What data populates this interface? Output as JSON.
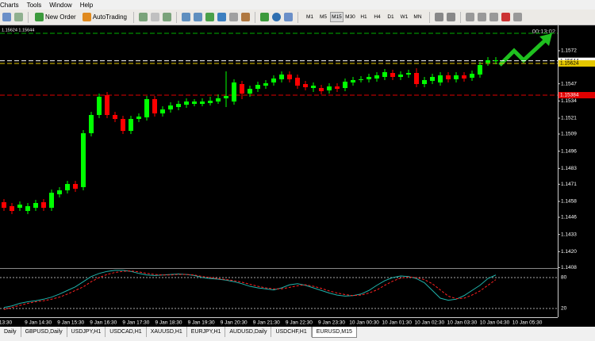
{
  "menu": [
    "Charts",
    "Tools",
    "Window",
    "Help"
  ],
  "toolbar": {
    "buttons": [
      "New Order",
      "AutoTrading"
    ],
    "timeframes": [
      "M1",
      "M5",
      "M15",
      "M30",
      "H1",
      "H4",
      "D1",
      "W1",
      "MN"
    ],
    "active_timeframe": 2
  },
  "chart_data": [
    {
      "type": "candlestick",
      "subtitle": "1.15624 1.15644",
      "annotation": "00:13:02",
      "up_color": "#00ff00",
      "down_color": "#ff0000",
      "open": [
        1.14574,
        1.14544,
        1.14532,
        1.14508,
        1.14532,
        1.14574,
        1.14532,
        1.14634,
        1.14664,
        1.14712,
        1.14688,
        1.15096,
        1.15234,
        1.15384,
        1.15234,
        1.15204,
        1.15114,
        1.15204,
        1.15216,
        1.15354,
        1.15246,
        1.15276,
        1.15294,
        1.15312,
        1.15318,
        1.15318,
        1.15324,
        1.15336,
        1.1536,
        1.15336,
        1.15468,
        1.15396,
        1.15432,
        1.15456,
        1.1548,
        1.15504,
        1.1554,
        1.15516,
        1.15468,
        1.15438,
        1.15438,
        1.1542,
        1.1545,
        1.15438,
        1.1548,
        1.15498,
        1.15504,
        1.1551,
        1.15522,
        1.15552,
        1.15522,
        1.1554,
        1.15552,
        1.15468,
        1.15492,
        1.1548,
        1.15534,
        1.15504,
        1.15534,
        1.15516,
        1.1554,
        1.1563,
        1.15642
      ],
      "high": [
        1.14598,
        1.14568,
        1.1458,
        1.14568,
        1.14592,
        1.14598,
        1.1467,
        1.14688,
        1.14736,
        1.14736,
        1.1512,
        1.15258,
        1.15396,
        1.15408,
        1.15258,
        1.15228,
        1.15228,
        1.15246,
        1.15378,
        1.15378,
        1.153,
        1.1533,
        1.15342,
        1.1536,
        1.15354,
        1.1536,
        1.15372,
        1.1539,
        1.15564,
        1.15504,
        1.15492,
        1.15456,
        1.15486,
        1.15498,
        1.15534,
        1.15564,
        1.15564,
        1.1554,
        1.15492,
        1.1548,
        1.15462,
        1.15474,
        1.15474,
        1.1551,
        1.15522,
        1.15528,
        1.15546,
        1.15558,
        1.15582,
        1.15576,
        1.15564,
        1.15576,
        1.15588,
        1.15522,
        1.15546,
        1.15558,
        1.15558,
        1.15558,
        1.15558,
        1.1557,
        1.15636,
        1.15672,
        1.15672
      ],
      "low": [
        1.14508,
        1.14484,
        1.14508,
        1.14484,
        1.14508,
        1.14508,
        1.14508,
        1.1461,
        1.1464,
        1.14652,
        1.14664,
        1.15072,
        1.1521,
        1.1521,
        1.1518,
        1.1509,
        1.1509,
        1.1518,
        1.15192,
        1.15222,
        1.15222,
        1.15252,
        1.1527,
        1.15288,
        1.153,
        1.153,
        1.15306,
        1.15318,
        1.15294,
        1.15312,
        1.15354,
        1.15372,
        1.15408,
        1.15432,
        1.15456,
        1.1548,
        1.1548,
        1.15432,
        1.1542,
        1.15408,
        1.1539,
        1.15396,
        1.15408,
        1.15414,
        1.15456,
        1.1548,
        1.1548,
        1.15486,
        1.15498,
        1.15498,
        1.15498,
        1.15516,
        1.15444,
        1.15444,
        1.15468,
        1.15456,
        1.1548,
        1.1548,
        1.15486,
        1.15492,
        1.15516,
        1.15606,
        1.15618
      ],
      "close": [
        1.14532,
        1.14508,
        1.14556,
        1.14544,
        1.14568,
        1.14532,
        1.14646,
        1.14664,
        1.14712,
        1.14676,
        1.15096,
        1.15234,
        1.15372,
        1.15234,
        1.15204,
        1.15114,
        1.15204,
        1.15222,
        1.15354,
        1.15246,
        1.15276,
        1.15306,
        1.15318,
        1.15336,
        1.15336,
        1.15336,
        1.15342,
        1.1536,
        1.15378,
        1.1548,
        1.15396,
        1.15432,
        1.15462,
        1.15474,
        1.1551,
        1.1554,
        1.15504,
        1.15456,
        1.15444,
        1.15456,
        1.15414,
        1.1545,
        1.15432,
        1.15486,
        1.15498,
        1.15504,
        1.15522,
        1.15534,
        1.15558,
        1.15522,
        1.1554,
        1.15552,
        1.15468,
        1.15498,
        1.15522,
        1.15534,
        1.15504,
        1.15534,
        1.1551,
        1.15546,
        1.15612,
        1.15648,
        1.15648
      ],
      "ylim": [
        1.14082,
        1.15906
      ],
      "yticks": [
        1.1572,
        1.1547,
        1.1534,
        1.1521,
        1.1509,
        1.1496,
        1.1483,
        1.1471,
        1.1458,
        1.1446,
        1.1433,
        {
          "value": 1.142,
          "label": "1.1420"
        },
        1.1408
      ],
      "levels": [
        {
          "value": 1.15852,
          "color": "#00b000"
        },
        {
          "value": 1.15644,
          "color": "#ffffff",
          "label": "1.15644"
        },
        {
          "value": 1.15624,
          "color": "#e6c800",
          "label": "1.15624"
        },
        {
          "value": 1.15384,
          "color": "#e00000",
          "label": "1.15384"
        }
      ],
      "x_labels": [
        "13:30",
        "9 Jan 14:30",
        "9 Jan 15:30",
        "9 Jan 16:30",
        "9 Jan 17:30",
        "9 Jan 18:30",
        "9 Jan 19:30",
        "9 Jan 20:30",
        "9 Jan 21:30",
        "9 Jan 22:30",
        "9 Jan 23:30",
        "10 Jan 00:30",
        "10 Jan 01:30",
        "10 Jan 02:30",
        "10 Jan 03:30",
        "10 Jan 04:30",
        "10 Jan 05:30"
      ]
    },
    {
      "type": "line",
      "ylim": [
        0,
        100
      ],
      "yticks": [
        20,
        80
      ],
      "series": [
        {
          "color": "#20b2aa",
          "dashed": false,
          "values": [
            22,
            25,
            30,
            33,
            35,
            38,
            42,
            48,
            55,
            62,
            72,
            82,
            88,
            92,
            94,
            94,
            92,
            88,
            85,
            84,
            85,
            86,
            87,
            86,
            84,
            80,
            78,
            77,
            75,
            72,
            68,
            63,
            60,
            58,
            56,
            60,
            66,
            68,
            65,
            60,
            55,
            50,
            46,
            44,
            45,
            48,
            55,
            65,
            74,
            80,
            83,
            82,
            78,
            70,
            55,
            40,
            36,
            38,
            45,
            55,
            65,
            78,
            85
          ]
        },
        {
          "color": "#ff2020",
          "dashed": true,
          "values": [
            18,
            22,
            26,
            30,
            33,
            35,
            38,
            42,
            48,
            55,
            62,
            72,
            80,
            86,
            90,
            92,
            93,
            91,
            88,
            86,
            85,
            85,
            86,
            86,
            85,
            82,
            80,
            78,
            76,
            74,
            71,
            67,
            63,
            60,
            58,
            58,
            61,
            64,
            66,
            63,
            59,
            54,
            50,
            47,
            45,
            46,
            50,
            56,
            65,
            73,
            79,
            81,
            80,
            76,
            68,
            56,
            44,
            39,
            40,
            46,
            54,
            65,
            76
          ]
        }
      ]
    }
  ],
  "tabs": [
    "Daily",
    "GBPUSD,Daily",
    "USDJPY,H1",
    "USDCAD,H1",
    "XAUUSD,H1",
    "EURJPY,H1",
    "AUDUSD,Daily",
    "USDCHF,H1",
    "EURUSD,M15"
  ],
  "active_tab": 8
}
